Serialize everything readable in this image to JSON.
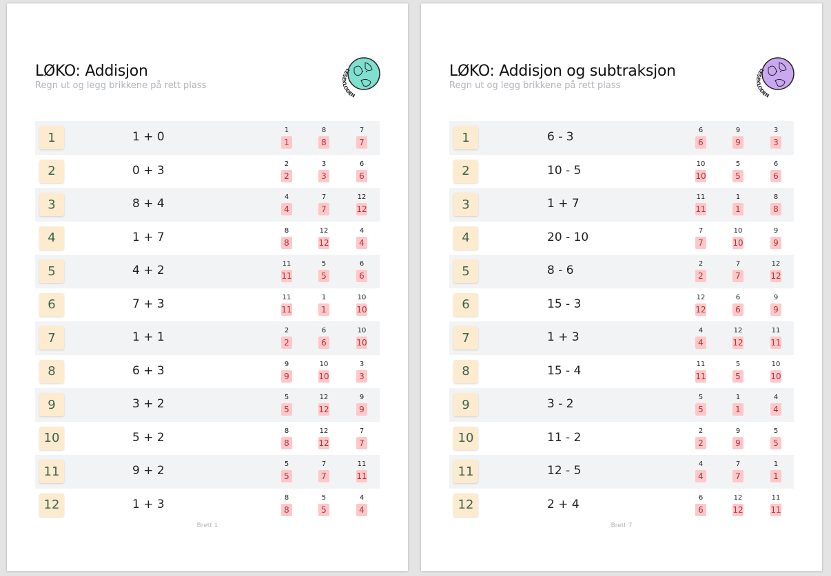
{
  "pages": [
    {
      "title": "LØKO: Addisjon",
      "subtitle": "Regn ut og legg brikkene på rett plass",
      "logo_text": "LESEKLODEN",
      "logo_color": "#7fe0d0",
      "footer": "Brett 1",
      "rows": [
        {
          "n": "1",
          "expr": "1 + 0",
          "opts": [
            "1",
            "8",
            "7"
          ]
        },
        {
          "n": "2",
          "expr": "0 + 3",
          "opts": [
            "2",
            "3",
            "6"
          ]
        },
        {
          "n": "3",
          "expr": "8 + 4",
          "opts": [
            "4",
            "7",
            "12"
          ]
        },
        {
          "n": "4",
          "expr": "1 + 7",
          "opts": [
            "8",
            "12",
            "4"
          ]
        },
        {
          "n": "5",
          "expr": "4 + 2",
          "opts": [
            "11",
            "5",
            "6"
          ]
        },
        {
          "n": "6",
          "expr": "7 + 3",
          "opts": [
            "11",
            "1",
            "10"
          ]
        },
        {
          "n": "7",
          "expr": "1 + 1",
          "opts": [
            "2",
            "6",
            "10"
          ]
        },
        {
          "n": "8",
          "expr": "6 + 3",
          "opts": [
            "9",
            "10",
            "3"
          ]
        },
        {
          "n": "9",
          "expr": "3 + 2",
          "opts": [
            "5",
            "12",
            "9"
          ]
        },
        {
          "n": "10",
          "expr": "5 + 2",
          "opts": [
            "8",
            "12",
            "7"
          ]
        },
        {
          "n": "11",
          "expr": "9 + 2",
          "opts": [
            "5",
            "7",
            "11"
          ]
        },
        {
          "n": "12",
          "expr": "1 + 3",
          "opts": [
            "8",
            "5",
            "4"
          ]
        }
      ]
    },
    {
      "title": "LØKO: Addisjon og subtraksjon",
      "subtitle": "Regn ut og legg brikkene på rett plass",
      "logo_text": "LESEKLODEN",
      "logo_color": "#c9a8f0",
      "footer": "Brett 7",
      "rows": [
        {
          "n": "1",
          "expr": "6 - 3",
          "opts": [
            "6",
            "9",
            "3"
          ]
        },
        {
          "n": "2",
          "expr": "10 - 5",
          "opts": [
            "10",
            "5",
            "6"
          ]
        },
        {
          "n": "3",
          "expr": "1 + 7",
          "opts": [
            "11",
            "1",
            "8"
          ]
        },
        {
          "n": "4",
          "expr": "20 - 10",
          "opts": [
            "7",
            "10",
            "9"
          ]
        },
        {
          "n": "5",
          "expr": "8 - 6",
          "opts": [
            "2",
            "7",
            "12"
          ]
        },
        {
          "n": "6",
          "expr": "15 - 3",
          "opts": [
            "12",
            "6",
            "9"
          ]
        },
        {
          "n": "7",
          "expr": "1 + 3",
          "opts": [
            "4",
            "12",
            "11"
          ]
        },
        {
          "n": "8",
          "expr": "15 - 4",
          "opts": [
            "11",
            "5",
            "10"
          ]
        },
        {
          "n": "9",
          "expr": "3 - 2",
          "opts": [
            "5",
            "1",
            "4"
          ]
        },
        {
          "n": "10",
          "expr": "11 - 2",
          "opts": [
            "2",
            "9",
            "5"
          ]
        },
        {
          "n": "11",
          "expr": "12 - 5",
          "opts": [
            "4",
            "7",
            "1"
          ]
        },
        {
          "n": "12",
          "expr": "2 + 4",
          "opts": [
            "6",
            "12",
            "11"
          ]
        }
      ]
    }
  ]
}
